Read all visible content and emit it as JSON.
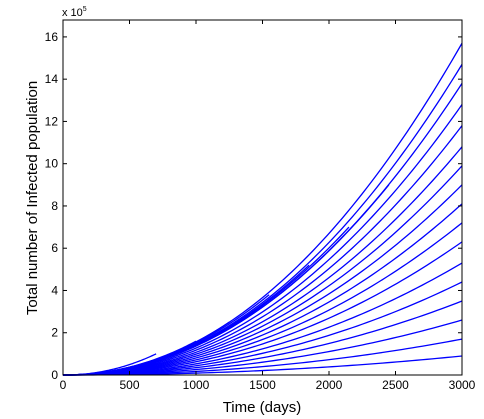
{
  "chart_data": {
    "type": "line",
    "title": "",
    "xlabel": "Time (days)",
    "ylabel": "Total number of Infected population",
    "y_multiplier_label": "x 10",
    "y_multiplier_exponent": "5",
    "xlim": [
      0,
      3000
    ],
    "ylim": [
      0,
      16.8
    ],
    "y_scale": 100000,
    "x_ticks": [
      0,
      500,
      1000,
      1500,
      2000,
      2500,
      3000
    ],
    "x_tick_labels": [
      "0",
      "500",
      "1000",
      "1500",
      "2000",
      "2500",
      "3000"
    ],
    "y_ticks": [
      0,
      2,
      4,
      6,
      8,
      10,
      12,
      14,
      16
    ],
    "y_tick_labels": [
      "0",
      "2",
      "4",
      "6",
      "8",
      "10",
      "12",
      "14",
      "16"
    ],
    "grid": false,
    "legend": "none",
    "series_color": "#0000ff",
    "curve_shape_exponent": 2.1,
    "series": [
      {
        "x_end": 700,
        "y_end": 1.0
      },
      {
        "x_end": 1000,
        "y_end": 1.6
      },
      {
        "x_end": 1250,
        "y_end": 2.5
      },
      {
        "x_end": 1550,
        "y_end": 3.8
      },
      {
        "x_end": 1850,
        "y_end": 5.2
      },
      {
        "x_end": 2150,
        "y_end": 7.0
      },
      {
        "x_end": 2450,
        "y_end": 9.0
      },
      {
        "x_end": 3000,
        "y_end": 15.7
      },
      {
        "x_end": 3000,
        "y_end": 14.7
      },
      {
        "x_end": 3000,
        "y_end": 13.8
      },
      {
        "x_end": 3000,
        "y_end": 12.8
      },
      {
        "x_end": 3000,
        "y_end": 11.8
      },
      {
        "x_end": 3000,
        "y_end": 10.8
      },
      {
        "x_end": 3000,
        "y_end": 9.9
      },
      {
        "x_end": 3000,
        "y_end": 9.0
      },
      {
        "x_end": 3000,
        "y_end": 8.1
      },
      {
        "x_end": 3000,
        "y_end": 7.2
      },
      {
        "x_end": 3000,
        "y_end": 6.3
      },
      {
        "x_end": 3000,
        "y_end": 5.3
      },
      {
        "x_end": 3000,
        "y_end": 4.4
      },
      {
        "x_end": 3000,
        "y_end": 3.5
      },
      {
        "x_end": 3000,
        "y_end": 2.6
      },
      {
        "x_end": 3000,
        "y_end": 1.7
      },
      {
        "x_end": 3000,
        "y_end": 0.9
      }
    ]
  }
}
